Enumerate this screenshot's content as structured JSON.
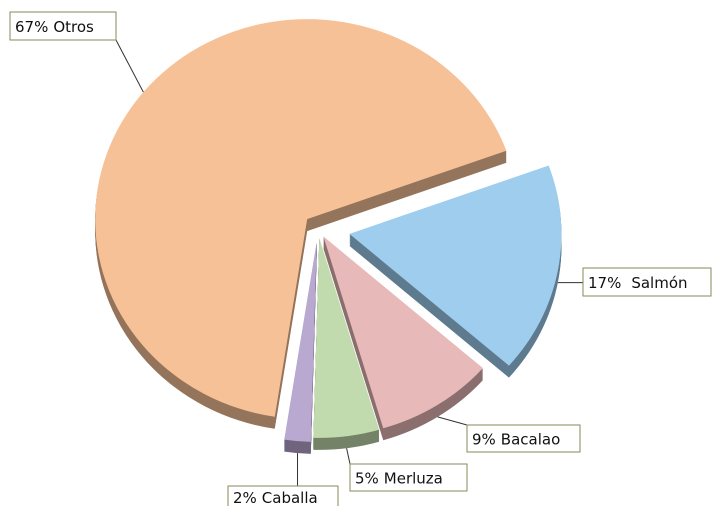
{
  "chart_data": {
    "type": "pie",
    "categories": [
      "Otros",
      "Salmón",
      "Bacalao",
      "Merluza",
      "Caballa"
    ],
    "values": [
      67,
      17,
      9,
      5,
      2
    ],
    "value_labels": [
      "67%",
      "17%",
      "9%",
      "5%",
      "2%"
    ],
    "colors": [
      "#f7c197",
      "#9fcdee",
      "#e8b9b9",
      "#c2dbae",
      "#b9a9d1"
    ]
  }
}
